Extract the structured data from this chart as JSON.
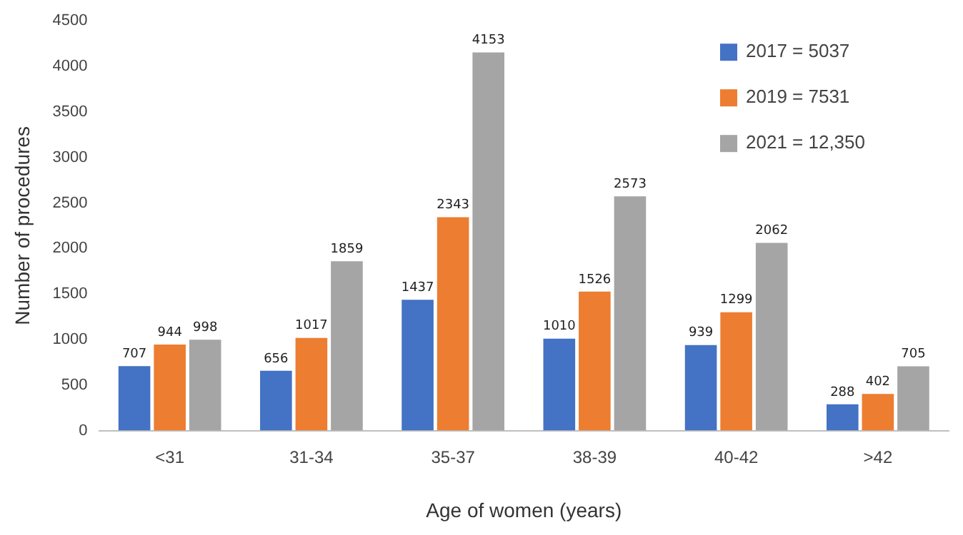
{
  "chart_data": {
    "type": "bar",
    "xlabel": "Age of women (years)",
    "ylabel": "Number of procedures",
    "categories": [
      "<31",
      "31-34",
      "35-37",
      "38-39",
      "40-42",
      ">42"
    ],
    "series": [
      {
        "name": "2017 = 5037",
        "color": "#4472c4",
        "values": [
          707,
          656,
          1437,
          1010,
          939,
          288
        ]
      },
      {
        "name": "2019 = 7531",
        "color": "#ed7d31",
        "values": [
          944,
          1017,
          2343,
          1526,
          1299,
          402
        ]
      },
      {
        "name": "2021 = 12,350",
        "color": "#a5a5a5",
        "values": [
          998,
          1859,
          4153,
          2573,
          2062,
          705
        ]
      }
    ],
    "ylim": [
      0,
      4500
    ],
    "yticks": [
      0,
      500,
      1000,
      1500,
      2000,
      2500,
      3000,
      3500,
      4000,
      4500
    ],
    "grid": false,
    "legend": "top right",
    "data_labels": true
  }
}
